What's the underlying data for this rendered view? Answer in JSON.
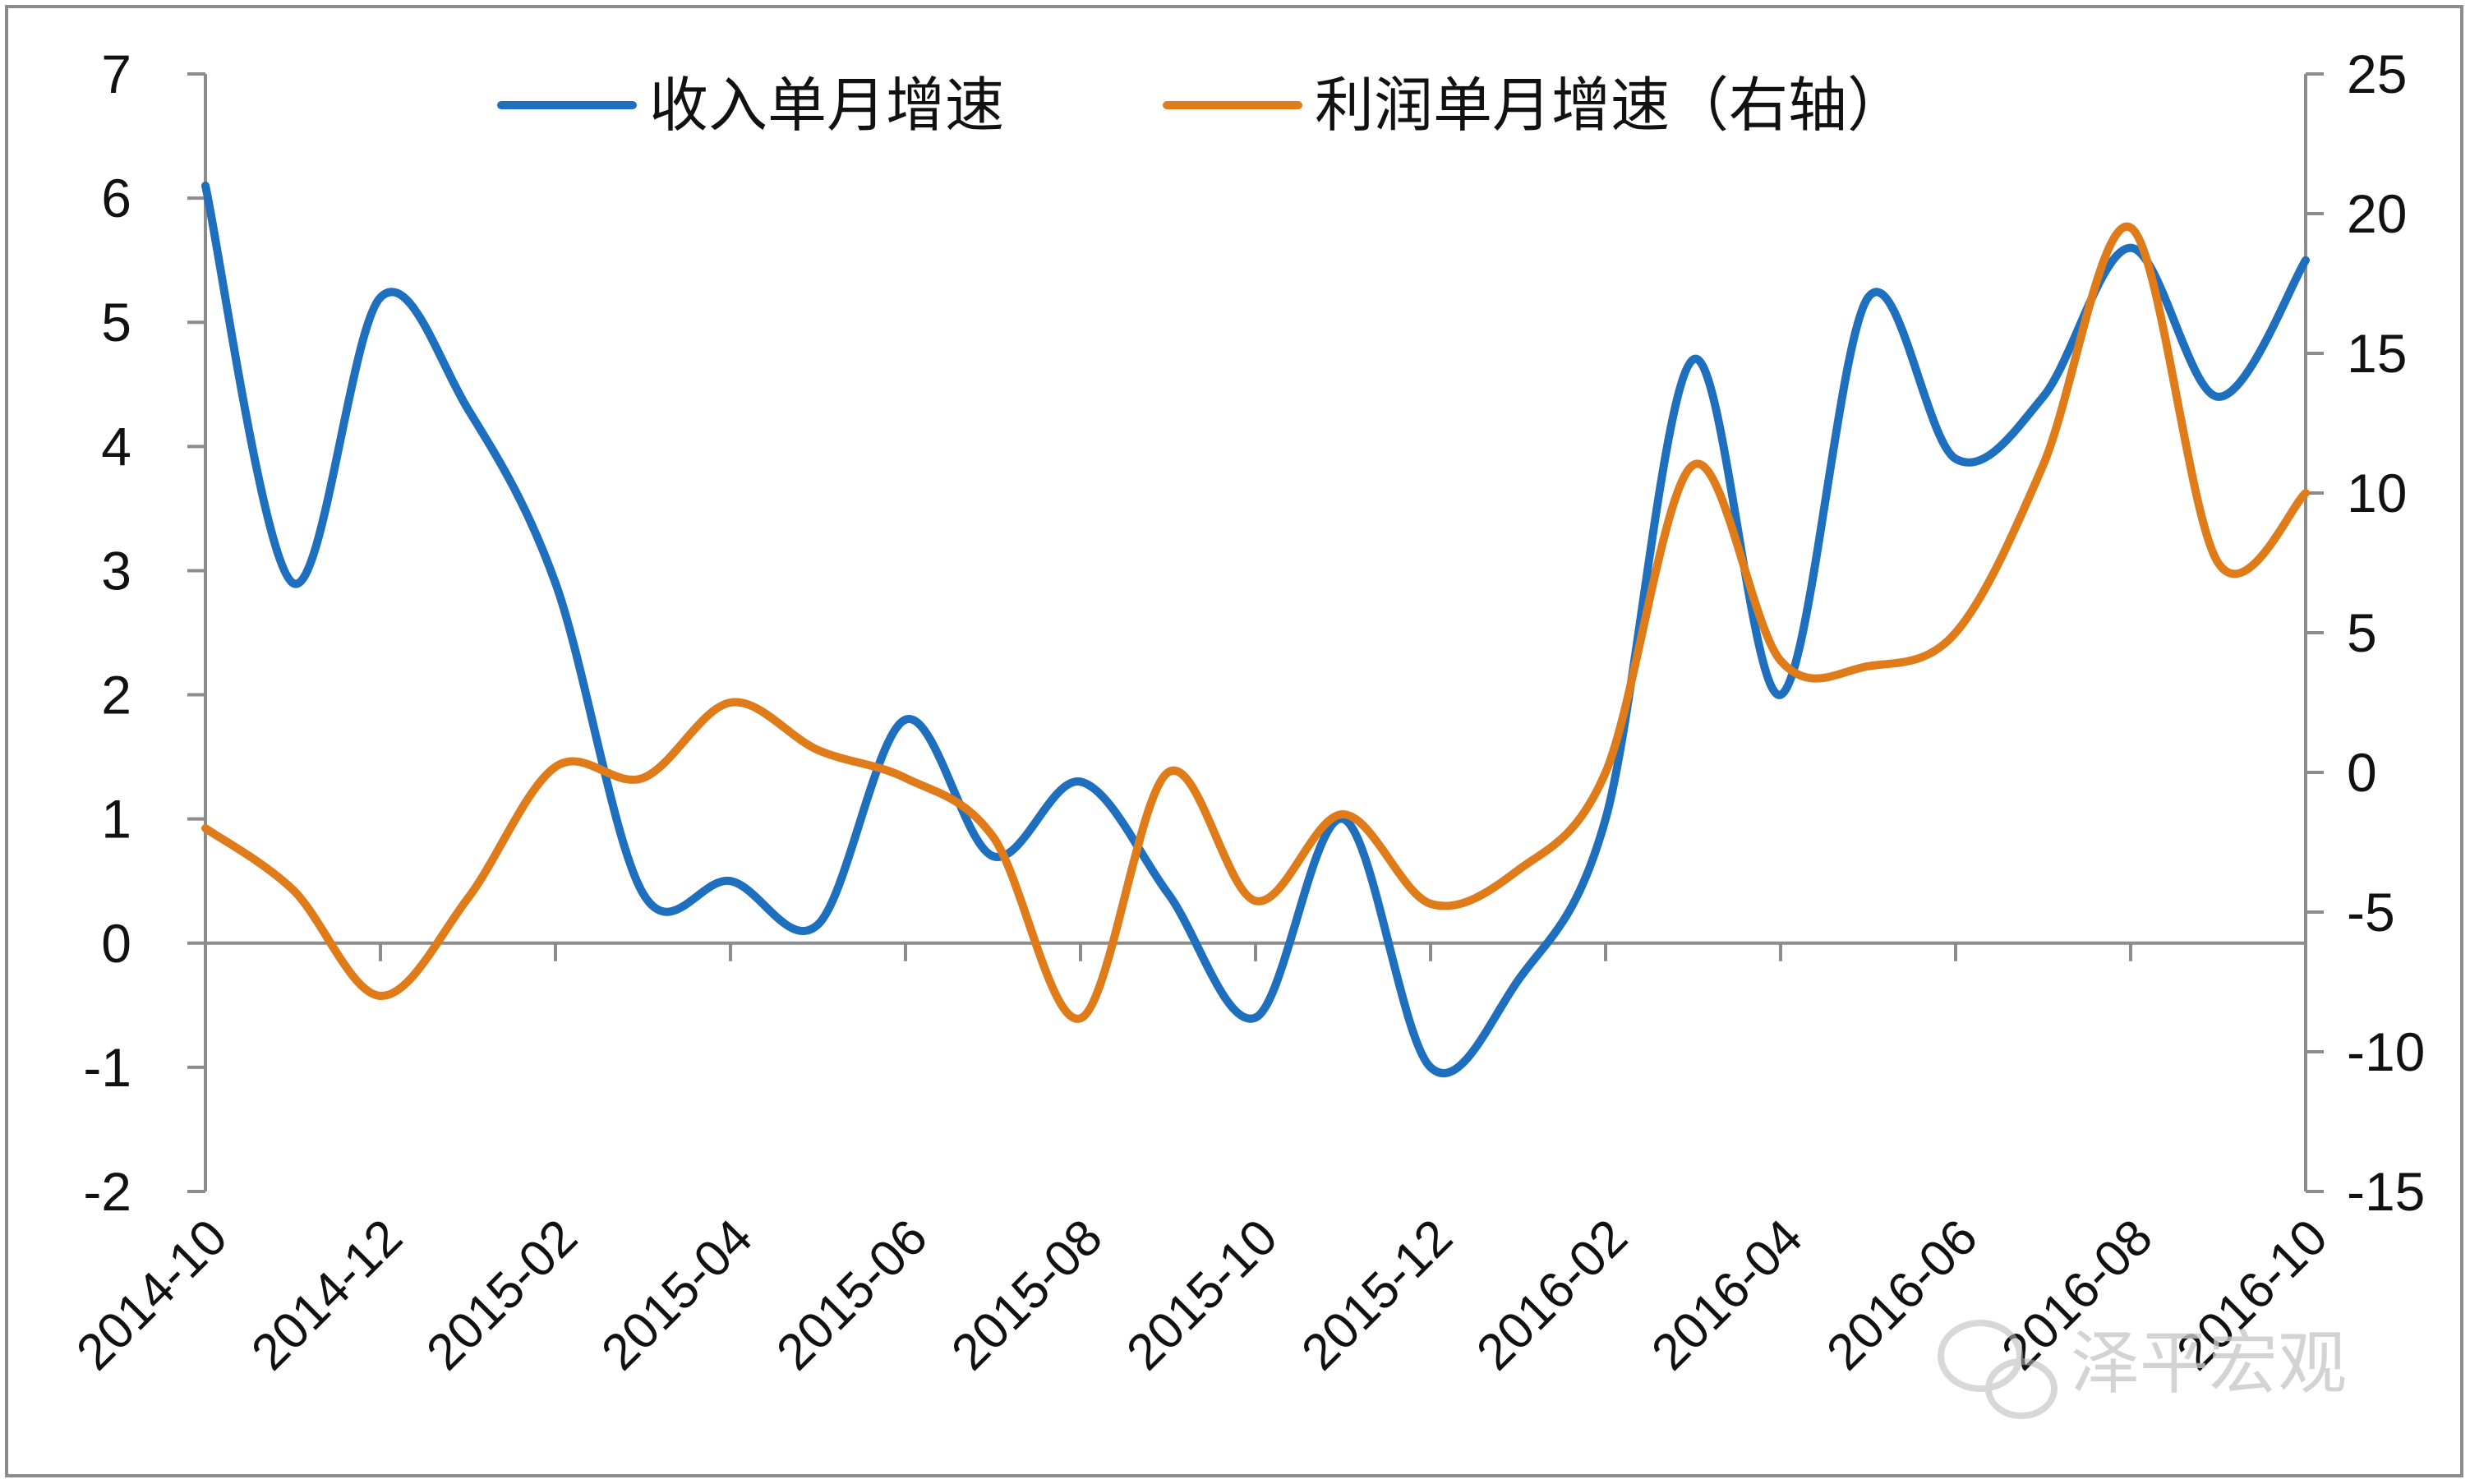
{
  "chart_data": {
    "type": "line",
    "x": [
      "2014-10",
      "2014-11",
      "2014-12",
      "2015-01",
      "2015-02",
      "2015-03",
      "2015-04",
      "2015-05",
      "2015-06",
      "2015-07",
      "2015-08",
      "2015-09",
      "2015-10",
      "2015-11",
      "2015-12",
      "2016-01",
      "2016-02",
      "2016-03",
      "2016-04",
      "2016-05",
      "2016-06",
      "2016-07",
      "2016-08",
      "2016-09",
      "2016-10"
    ],
    "x_tick_labels": [
      "2014-10",
      "2014-12",
      "2015-02",
      "2015-04",
      "2015-06",
      "2015-08",
      "2015-10",
      "2015-12",
      "2016-02",
      "2016-04",
      "2016-06",
      "2016-08",
      "2016-10"
    ],
    "y_left": {
      "range": [
        -2,
        7
      ],
      "ticks": [
        "-2",
        "-1",
        "0",
        "1",
        "2",
        "3",
        "4",
        "5",
        "6",
        "7"
      ]
    },
    "y_right": {
      "range": [
        -15,
        25
      ],
      "ticks": [
        "-15",
        "-10",
        "-5",
        "0",
        "5",
        "10",
        "15",
        "20",
        "25"
      ]
    },
    "series": [
      {
        "name": "收入单月增速",
        "axis": "left",
        "color": "#1f6fbf",
        "values": [
          6.1,
          2.9,
          5.2,
          4.3,
          2.9,
          0.4,
          0.5,
          0.15,
          1.8,
          0.7,
          1.3,
          0.4,
          -0.6,
          1.0,
          -1.0,
          -0.3,
          1.0,
          4.7,
          2.0,
          5.2,
          3.9,
          4.4,
          5.6,
          4.4,
          5.5
        ]
      },
      {
        "name": "利润单月增速（右轴）",
        "axis": "right",
        "color": "#e07b1a",
        "values": [
          -2.0,
          -4.2,
          -8.0,
          -4.5,
          0.2,
          -0.2,
          2.5,
          0.8,
          -0.2,
          -2.3,
          -8.8,
          0.0,
          -4.6,
          -1.5,
          -4.7,
          -3.5,
          0.0,
          11.0,
          4.0,
          3.8,
          5.0,
          11.0,
          19.5,
          7.5,
          10.0
        ]
      }
    ],
    "grid": false,
    "legend_position": "top"
  },
  "watermark": {
    "text": "泽平宏观",
    "icon": "wechat-icon"
  }
}
